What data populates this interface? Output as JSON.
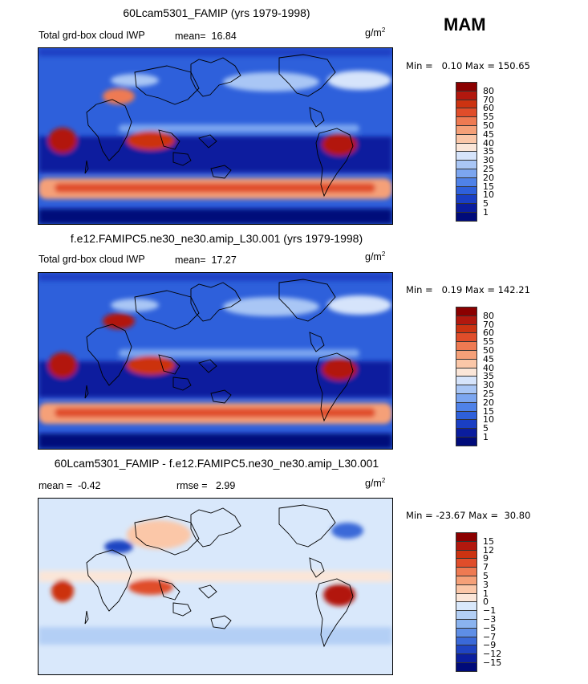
{
  "season": "MAM",
  "panels": [
    {
      "title": "60Lcam5301_FAMIP (yrs 1979-1998)",
      "left_label": "Total grd-box cloud IWP",
      "mean_label": "mean=",
      "mean_value": "16.84",
      "units": "g/m",
      "units_sup": "2",
      "minmax": "Min =   0.10 Max = 150.65",
      "colorbar": {
        "labels": [
          "80",
          "70",
          "60",
          "55",
          "50",
          "45",
          "40",
          "35",
          "30",
          "25",
          "20",
          "15",
          "10",
          "5",
          "1"
        ],
        "colors": [
          "#8b0000",
          "#b2180e",
          "#cc3311",
          "#e04d2a",
          "#ee7a52",
          "#f5a078",
          "#fbc7a8",
          "#fbe6d8",
          "#d6e4fb",
          "#a9c6f5",
          "#7ca6f0",
          "#4f82e8",
          "#2e60db",
          "#1a3fc4",
          "#0a1d9e",
          "#000b7a"
        ]
      }
    },
    {
      "title": "f.e12.FAMIPC5.ne30_ne30.amip_L30.001 (yrs 1979-1998)",
      "left_label": "Total grd-box cloud IWP",
      "mean_label": "mean=",
      "mean_value": "17.27",
      "units": "g/m",
      "units_sup": "2",
      "minmax": "Min =   0.19 Max = 142.21",
      "colorbar": {
        "labels": [
          "80",
          "70",
          "60",
          "55",
          "50",
          "45",
          "40",
          "35",
          "30",
          "25",
          "20",
          "15",
          "10",
          "5",
          "1"
        ],
        "colors": [
          "#8b0000",
          "#b2180e",
          "#cc3311",
          "#e04d2a",
          "#ee7a52",
          "#f5a078",
          "#fbc7a8",
          "#fbe6d8",
          "#d6e4fb",
          "#a9c6f5",
          "#7ca6f0",
          "#4f82e8",
          "#2e60db",
          "#1a3fc4",
          "#0a1d9e",
          "#000b7a"
        ]
      }
    },
    {
      "title": "60Lcam5301_FAMIP - f.e12.FAMIPC5.ne30_ne30.amip_L30.001",
      "mean_label": "mean =",
      "mean_value": "-0.42",
      "rmse_label": "rmse =",
      "rmse_value": "2.99",
      "units": "g/m",
      "units_sup": "2",
      "minmax": "Min = -23.67 Max =  30.80",
      "colorbar": {
        "labels": [
          "15",
          "12",
          "9",
          "7",
          "5",
          "3",
          "1",
          "0",
          "−1",
          "−3",
          "−5",
          "−7",
          "−9",
          "−12",
          "−15"
        ],
        "colors": [
          "#8b0000",
          "#b2180e",
          "#cc3311",
          "#e04d2a",
          "#ee7a52",
          "#f5a078",
          "#fbc7a8",
          "#fbe6d8",
          "#d9e8fb",
          "#b3cff5",
          "#8ab3ef",
          "#5e8ee6",
          "#3a69d8",
          "#1f44c2",
          "#0b1f9f",
          "#000b7a"
        ]
      }
    }
  ]
}
